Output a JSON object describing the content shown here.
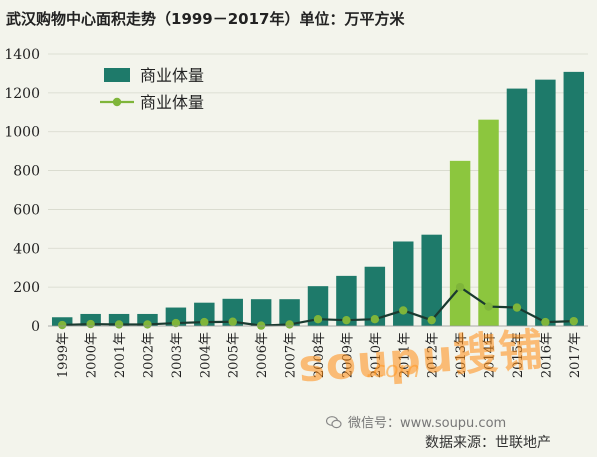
{
  "chart_data": {
    "type": "bar",
    "title": "武汉购物中心面积走势（1999－2017年）单位：万平方米",
    "categories": [
      "1999年",
      "2000年",
      "2001年",
      "2002年",
      "2003年",
      "2004年",
      "2005年",
      "2006年",
      "2007年",
      "2008年",
      "2009年",
      "2010年",
      "2011年",
      "2012年",
      "2013年",
      "2014年",
      "2015年",
      "2016年",
      "2017年"
    ],
    "series": [
      {
        "name": "商业体量",
        "kind": "bar",
        "values": [
          45,
          62,
          62,
          62,
          95,
          120,
          140,
          138,
          138,
          205,
          258,
          305,
          435,
          470,
          850,
          1062,
          1222,
          1268,
          1308
        ],
        "colors": [
          "#1e7a6a",
          "#1e7a6a",
          "#1e7a6a",
          "#1e7a6a",
          "#1e7a6a",
          "#1e7a6a",
          "#1e7a6a",
          "#1e7a6a",
          "#1e7a6a",
          "#1e7a6a",
          "#1e7a6a",
          "#1e7a6a",
          "#1e7a6a",
          "#1e7a6a",
          "#8cc63e",
          "#8cc63e",
          "#1e7a6a",
          "#1e7a6a",
          "#1e7a6a"
        ]
      },
      {
        "name": "商业体量",
        "kind": "line",
        "values": [
          5,
          10,
          8,
          8,
          15,
          20,
          22,
          2,
          8,
          35,
          30,
          35,
          80,
          30,
          200,
          100,
          95,
          20,
          25
        ],
        "color": "#7fb53a"
      }
    ],
    "ylim": [
      0,
      1400
    ],
    "yticks": [
      0,
      200,
      400,
      600,
      800,
      1000,
      1200,
      1400
    ],
    "grid": true,
    "legend": "top-left",
    "bar_color": "#1e7a6a",
    "highlight_color": "#8cc63e"
  },
  "watermark": {
    "brand": "soupu搜铺",
    "domain": ".com"
  },
  "footer": {
    "wechat": "微信号：www.soupu.com",
    "source": "数据来源：世联地产"
  }
}
